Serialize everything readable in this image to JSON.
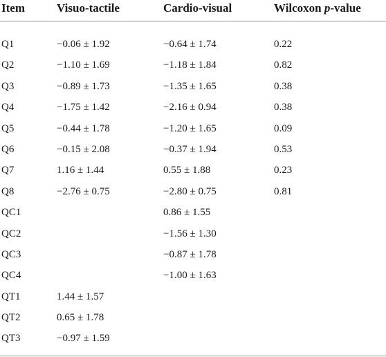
{
  "table": {
    "headers": {
      "item": "Item",
      "visuo_tactile": "Visuo-tactile",
      "cardio_visual": "Cardio-visual",
      "wilcoxon_prefix": "Wilcoxon ",
      "wilcoxon_p": "p",
      "wilcoxon_suffix": "-value"
    },
    "rows": [
      {
        "item": "Q1",
        "visuo_tactile": "−0.06 ± 1.92",
        "cardio_visual": "−0.64 ± 1.74",
        "wilcoxon": "0.22"
      },
      {
        "item": "Q2",
        "visuo_tactile": "−1.10 ± 1.69",
        "cardio_visual": "−1.18 ± 1.84",
        "wilcoxon": "0.82"
      },
      {
        "item": "Q3",
        "visuo_tactile": "−0.89 ± 1.73",
        "cardio_visual": "−1.35 ± 1.65",
        "wilcoxon": "0.38"
      },
      {
        "item": "Q4",
        "visuo_tactile": "−1.75 ± 1.42",
        "cardio_visual": "−2.16 ± 0.94",
        "wilcoxon": "0.38"
      },
      {
        "item": "Q5",
        "visuo_tactile": "−0.44 ± 1.78",
        "cardio_visual": "−1.20 ± 1.65",
        "wilcoxon": "0.09"
      },
      {
        "item": "Q6",
        "visuo_tactile": "−0.15 ± 2.08",
        "cardio_visual": "−0.37 ± 1.94",
        "wilcoxon": "0.53"
      },
      {
        "item": "Q7",
        "visuo_tactile": "1.16 ± 1.44",
        "cardio_visual": "0.55 ± 1.88",
        "wilcoxon": "0.23"
      },
      {
        "item": "Q8",
        "visuo_tactile": "−2.76 ± 0.75",
        "cardio_visual": "−2.80 ± 0.75",
        "wilcoxon": "0.81"
      },
      {
        "item": "QC1",
        "visuo_tactile": "",
        "cardio_visual": "0.86 ± 1.55",
        "wilcoxon": ""
      },
      {
        "item": "QC2",
        "visuo_tactile": "",
        "cardio_visual": "−1.56 ± 1.30",
        "wilcoxon": ""
      },
      {
        "item": "QC3",
        "visuo_tactile": "",
        "cardio_visual": "−0.87 ± 1.78",
        "wilcoxon": ""
      },
      {
        "item": "QC4",
        "visuo_tactile": "",
        "cardio_visual": "−1.00 ± 1.63",
        "wilcoxon": ""
      },
      {
        "item": "QT1",
        "visuo_tactile": "1.44 ± 1.57",
        "cardio_visual": "",
        "wilcoxon": ""
      },
      {
        "item": "QT2",
        "visuo_tactile": "0.65 ± 1.78",
        "cardio_visual": "",
        "wilcoxon": ""
      },
      {
        "item": "QT3",
        "visuo_tactile": "−0.97 ± 1.59",
        "cardio_visual": "",
        "wilcoxon": ""
      }
    ]
  }
}
